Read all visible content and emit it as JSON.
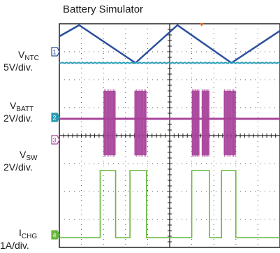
{
  "title": "Battery Simulator",
  "channels": [
    {
      "id": "1",
      "name_main": "V",
      "name_sub": "NTC",
      "scale": "5V/div.",
      "color": "#2a4f9e",
      "marker": "1"
    },
    {
      "id": "2",
      "name_main": "V",
      "name_sub": "BATT",
      "scale": "2V/div.",
      "color": "#2a9db5",
      "marker": "2"
    },
    {
      "id": "3",
      "name_main": "V",
      "name_sub": "SW",
      "scale": "2V/div.",
      "color": "#a9449b",
      "marker": "3"
    },
    {
      "id": "4",
      "name_main": "I",
      "name_sub": "CHG",
      "scale": "1A/div.",
      "color": "#67b93b",
      "marker": "4"
    }
  ],
  "chart_data": {
    "type": "line",
    "title": "Battery Simulator",
    "grid": true,
    "x_divisions": 10,
    "y_divisions": 8,
    "series": [
      {
        "name": "VNTC",
        "scale": "5V/div.",
        "color": "#2a4f9e",
        "points": [
          [
            0.0,
            7.55
          ],
          [
            0.9,
            7.95
          ],
          [
            3.45,
            6.6
          ],
          [
            5.35,
            7.95
          ],
          [
            7.8,
            6.6
          ],
          [
            10.0,
            7.75
          ]
        ]
      },
      {
        "name": "VBATT",
        "scale": "2V/div.",
        "color": "#2a9db5",
        "points": [
          [
            0.0,
            6.6
          ],
          [
            10.0,
            6.6
          ]
        ]
      },
      {
        "name": "VSW",
        "scale": "2V/div.",
        "color": "#a9449b",
        "baseline_div": 4.6,
        "burst_high_div": 5.6,
        "burst_low_div": 3.3,
        "bursts": [
          [
            2.0,
            2.55
          ],
          [
            3.4,
            3.95
          ],
          [
            6.0,
            6.35
          ],
          [
            6.45,
            6.8
          ],
          [
            7.45,
            8.0
          ]
        ]
      },
      {
        "name": "ICHG",
        "scale": "1A/div.",
        "color": "#67b93b",
        "low_div": 0.35,
        "high_div": 2.75,
        "pulses": [
          [
            1.85,
            2.55
          ],
          [
            3.2,
            3.95
          ],
          [
            6.0,
            6.8
          ],
          [
            7.35,
            8.0
          ]
        ]
      }
    ]
  }
}
